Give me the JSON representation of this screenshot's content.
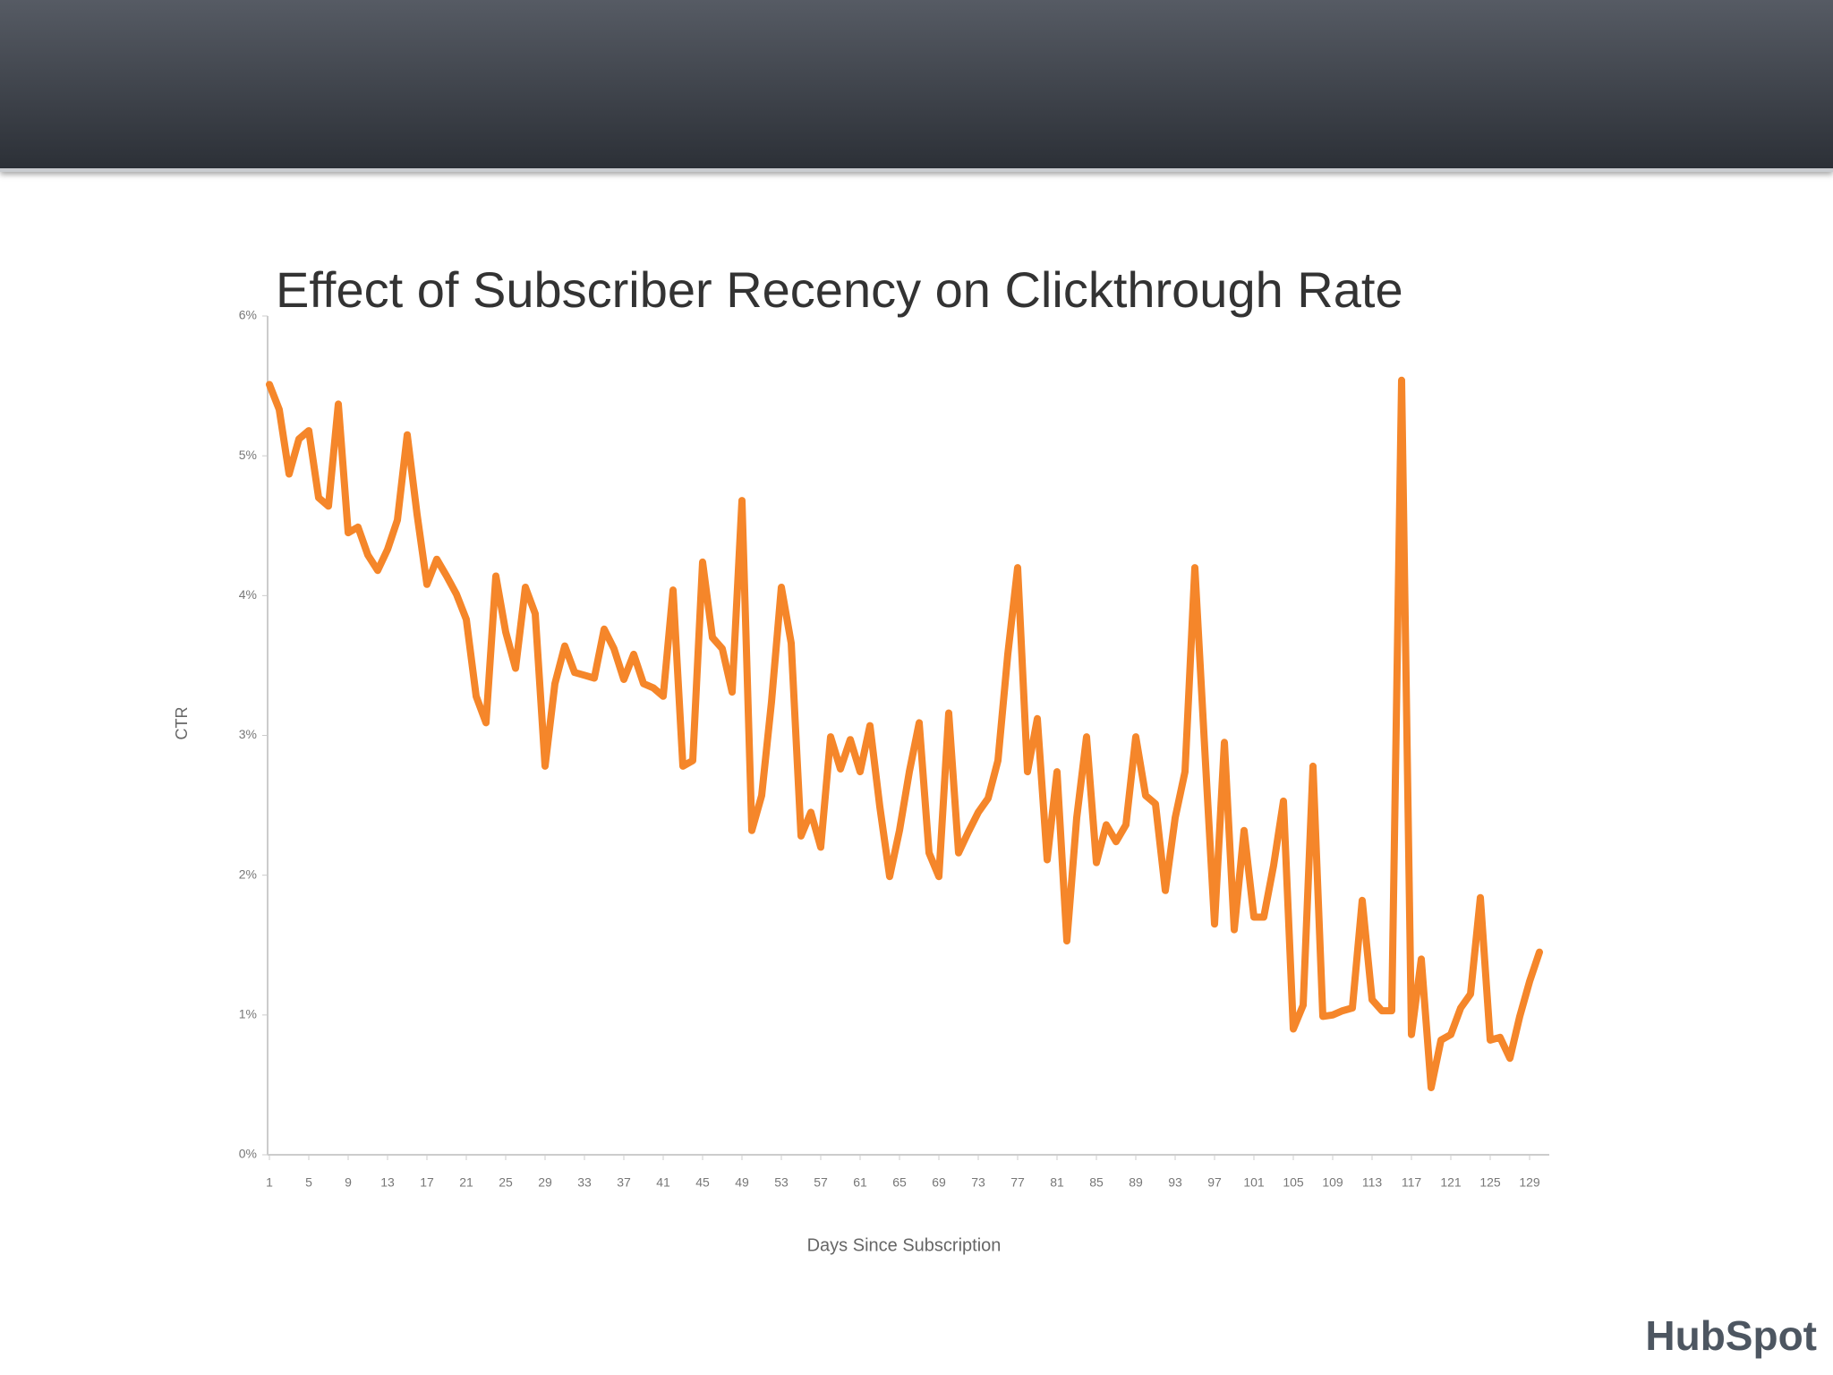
{
  "chart_data": {
    "type": "line",
    "title": "Effect of Subscriber Recency on Clickthrough Rate",
    "x_label": "Days Since Subscription",
    "y_label": "CTR",
    "color": "#f5862a",
    "x": [
      1,
      2,
      3,
      4,
      5,
      6,
      7,
      8,
      9,
      10,
      11,
      12,
      13,
      14,
      15,
      16,
      17,
      18,
      19,
      20,
      21,
      22,
      23,
      24,
      25,
      26,
      27,
      28,
      29,
      30,
      31,
      32,
      33,
      34,
      35,
      36,
      37,
      38,
      39,
      40,
      41,
      42,
      43,
      44,
      45,
      46,
      47,
      48,
      49,
      50,
      51,
      52,
      53,
      54,
      55,
      56,
      57,
      58,
      59,
      60,
      61,
      62,
      63,
      64,
      65,
      66,
      67,
      68,
      69,
      70,
      71,
      72,
      73,
      74,
      75,
      76,
      77,
      78,
      79,
      80,
      81,
      82,
      83,
      84,
      85,
      86,
      87,
      88,
      89,
      90,
      91,
      92,
      93,
      94,
      95,
      96,
      97,
      98,
      99,
      100,
      101,
      102,
      103,
      104,
      105,
      106,
      107,
      108,
      109,
      110,
      111,
      112,
      113,
      114,
      115,
      116,
      117,
      118,
      119,
      120,
      121,
      122,
      123,
      124,
      125,
      126,
      127,
      128,
      129,
      130
    ],
    "values": [
      5.51,
      5.33,
      4.87,
      5.12,
      5.18,
      4.7,
      4.64,
      5.37,
      4.45,
      4.49,
      4.29,
      4.18,
      4.33,
      4.54,
      5.15,
      4.58,
      4.08,
      4.26,
      4.14,
      4.01,
      3.83,
      3.28,
      3.09,
      4.14,
      3.74,
      3.48,
      4.06,
      3.87,
      2.78,
      3.37,
      3.64,
      3.45,
      3.43,
      3.41,
      3.76,
      3.62,
      3.4,
      3.58,
      3.37,
      3.34,
      3.28,
      4.04,
      2.78,
      2.82,
      4.24,
      3.7,
      3.62,
      3.31,
      4.68,
      2.32,
      2.57,
      3.24,
      4.06,
      3.66,
      2.28,
      2.45,
      2.2,
      2.99,
      2.76,
      2.97,
      2.74,
      3.07,
      2.49,
      1.99,
      2.32,
      2.74,
      3.09,
      2.16,
      1.99,
      3.16,
      2.16,
      2.31,
      2.45,
      2.55,
      2.82,
      3.58,
      4.2,
      2.74,
      3.12,
      2.11,
      2.74,
      1.53,
      2.41,
      2.99,
      2.09,
      2.36,
      2.24,
      2.36,
      2.99,
      2.57,
      2.51,
      1.89,
      2.41,
      2.74,
      4.2,
      2.91,
      1.65,
      2.95,
      1.61,
      2.32,
      1.7,
      1.7,
      2.07,
      2.53,
      0.9,
      1.07,
      2.78,
      0.99,
      1.0,
      1.03,
      1.05,
      1.82,
      1.11,
      1.03,
      1.03,
      5.54,
      0.86,
      1.4,
      0.48,
      0.82,
      0.86,
      1.05,
      1.15,
      1.84,
      0.82,
      0.84,
      0.69,
      0.99,
      1.24,
      1.45
    ],
    "xlim": [
      1,
      131
    ],
    "xticks": [
      1,
      5,
      9,
      13,
      17,
      21,
      25,
      29,
      33,
      37,
      41,
      45,
      49,
      53,
      57,
      61,
      65,
      69,
      73,
      77,
      81,
      85,
      89,
      93,
      97,
      101,
      105,
      109,
      113,
      117,
      121,
      125,
      129
    ],
    "ylim": [
      0,
      6
    ],
    "yticks": [
      {
        "value": 0,
        "label": "0%"
      },
      {
        "value": 1,
        "label": "1%"
      },
      {
        "value": 2,
        "label": "2%"
      },
      {
        "value": 3,
        "label": "3%"
      },
      {
        "value": 4,
        "label": "4%"
      },
      {
        "value": 5,
        "label": "5%"
      },
      {
        "value": 6,
        "label": "6%"
      }
    ],
    "grid": false
  },
  "logo": "HubSpot"
}
